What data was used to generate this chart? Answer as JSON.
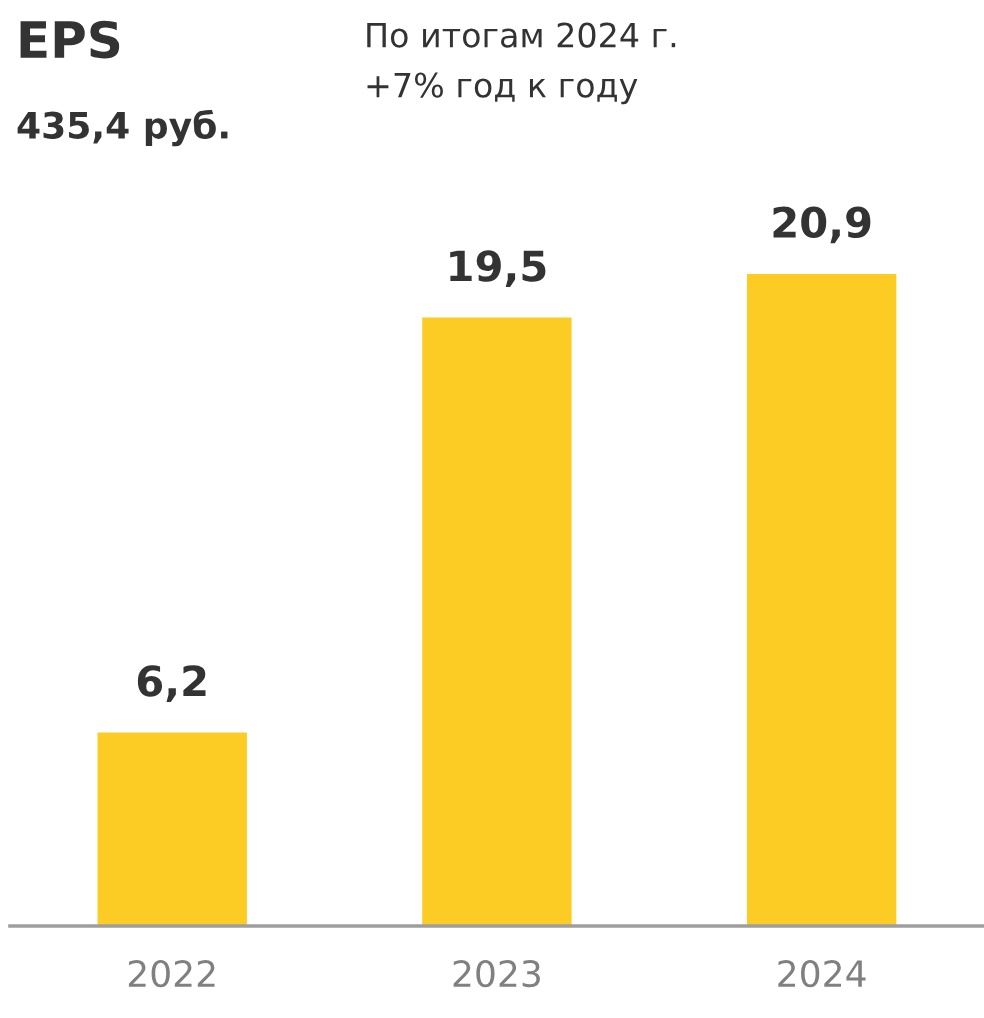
{
  "chart_data": {
    "type": "bar",
    "title": "EPS",
    "subtitle": "435,4 руб.",
    "annotations": [
      "По итогам 2024 г.",
      "+7% год к году"
    ],
    "categories": [
      "2022",
      "2023",
      "2024"
    ],
    "values": [
      6.2,
      19.5,
      20.9
    ],
    "value_labels": [
      "6,2",
      "19,5",
      "20,9"
    ],
    "color": "#fccb24",
    "tick_labels": "x",
    "grid": false,
    "legend": false
  }
}
